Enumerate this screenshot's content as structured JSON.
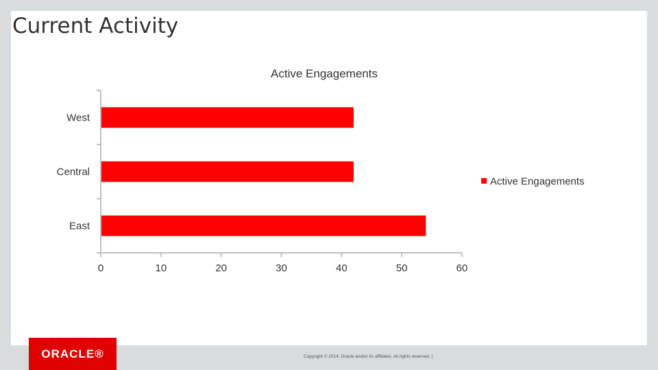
{
  "slide": {
    "title": "Current Activity"
  },
  "footer": {
    "logo_text": "ORACLE®",
    "copyright": "Copyright © 2014, Oracle and/or its affiliates. All rights reserved.  |"
  },
  "colors": {
    "bar": "#ff0000",
    "axis": "#bfbfbf",
    "text": "#333333"
  },
  "chart_data": {
    "type": "bar",
    "orientation": "horizontal",
    "title": "Active Engagements",
    "categories": [
      "West",
      "Central",
      "East"
    ],
    "series": [
      {
        "name": "Active Engagements",
        "values": [
          42,
          42,
          54
        ]
      }
    ],
    "xlim": [
      0,
      60
    ],
    "xticks": [
      "0",
      "10",
      "20",
      "30",
      "40",
      "50",
      "60"
    ],
    "grid": false,
    "legend_position": "right"
  }
}
